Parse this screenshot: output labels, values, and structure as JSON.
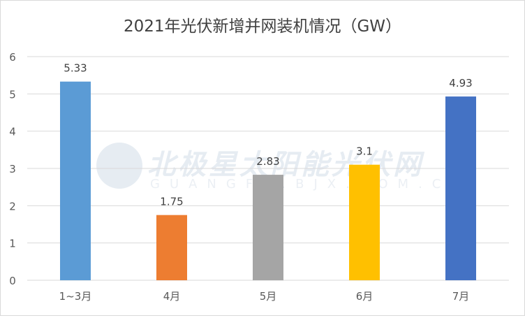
{
  "chart_data": {
    "type": "bar",
    "title": "2021年光伏新增并网装机情况（GW）",
    "categories": [
      "1~3月",
      "4月",
      "5月",
      "6月",
      "7月"
    ],
    "values": [
      5.33,
      1.75,
      2.83,
      3.1,
      4.93
    ],
    "data_labels": [
      "5.33",
      "1.75",
      "2.83",
      "3.1",
      "4.93"
    ],
    "colors": [
      "#5B9BD5",
      "#ED7D31",
      "#A5A5A5",
      "#FFC000",
      "#4472C4"
    ],
    "ylim": [
      0,
      6
    ],
    "yticks": [
      "0",
      "1",
      "2",
      "3",
      "4",
      "5",
      "6"
    ],
    "grid": true,
    "xlabel": "",
    "ylabel": ""
  },
  "watermark": {
    "name": "北极星太阳能光伏网",
    "url": "GUANGFU.BJX.COM.CN"
  }
}
